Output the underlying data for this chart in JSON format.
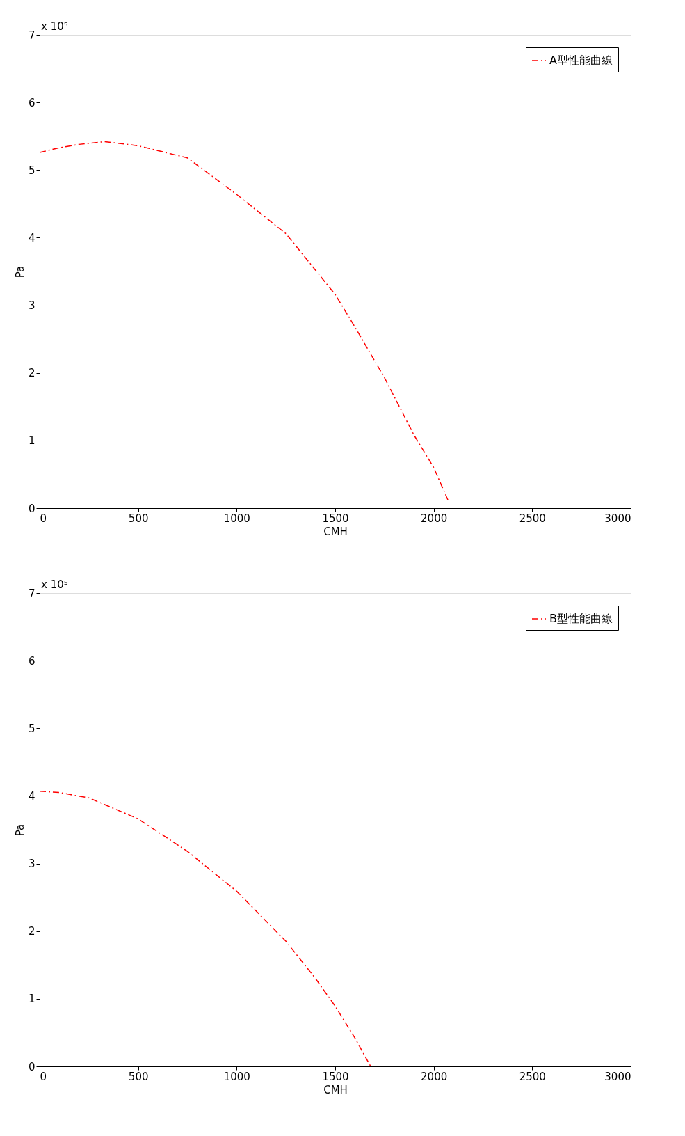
{
  "chart_data": [
    {
      "type": "line",
      "xlabel": "CMH",
      "ylabel": "Pa",
      "annotations": [
        "x 10⁵"
      ],
      "legend": "top right",
      "line_style": "dashdot",
      "marker": "none",
      "grid": false,
      "xlim": [
        0,
        3000
      ],
      "xticks": [
        0,
        500,
        1000,
        1500,
        2000,
        2500,
        3000
      ],
      "ylim": [
        0,
        7
      ],
      "yticks": [
        0,
        1,
        2,
        3,
        4,
        5,
        6,
        7
      ],
      "x": [
        0,
        100,
        200,
        330,
        500,
        750,
        1000,
        1250,
        1500,
        1600,
        1750,
        1900,
        2000,
        2075
      ],
      "series": [
        {
          "name": "A型性能曲線",
          "color": "#ff0000",
          "values": [
            5.26,
            5.33,
            5.38,
            5.42,
            5.36,
            5.18,
            4.64,
            4.06,
            3.16,
            2.68,
            1.93,
            1.08,
            0.6,
            0.1
          ]
        }
      ]
    },
    {
      "type": "line",
      "xlabel": "CMH",
      "ylabel": "Pa",
      "annotations": [
        "x 10⁵"
      ],
      "legend": "top right",
      "line_style": "dashdot",
      "marker": "none",
      "grid": false,
      "xlim": [
        0,
        3000
      ],
      "xticks": [
        0,
        500,
        1000,
        1500,
        2000,
        2500,
        3000
      ],
      "ylim": [
        0,
        7
      ],
      "yticks": [
        0,
        1,
        2,
        3,
        4,
        5,
        6,
        7
      ],
      "x": [
        0,
        100,
        250,
        500,
        750,
        1000,
        1250,
        1400,
        1500,
        1600,
        1680
      ],
      "series": [
        {
          "name": "B型性能曲線",
          "color": "#ff0000",
          "values": [
            4.07,
            4.05,
            3.97,
            3.66,
            3.18,
            2.59,
            1.85,
            1.3,
            0.89,
            0.42,
            0.0
          ]
        }
      ]
    }
  ]
}
